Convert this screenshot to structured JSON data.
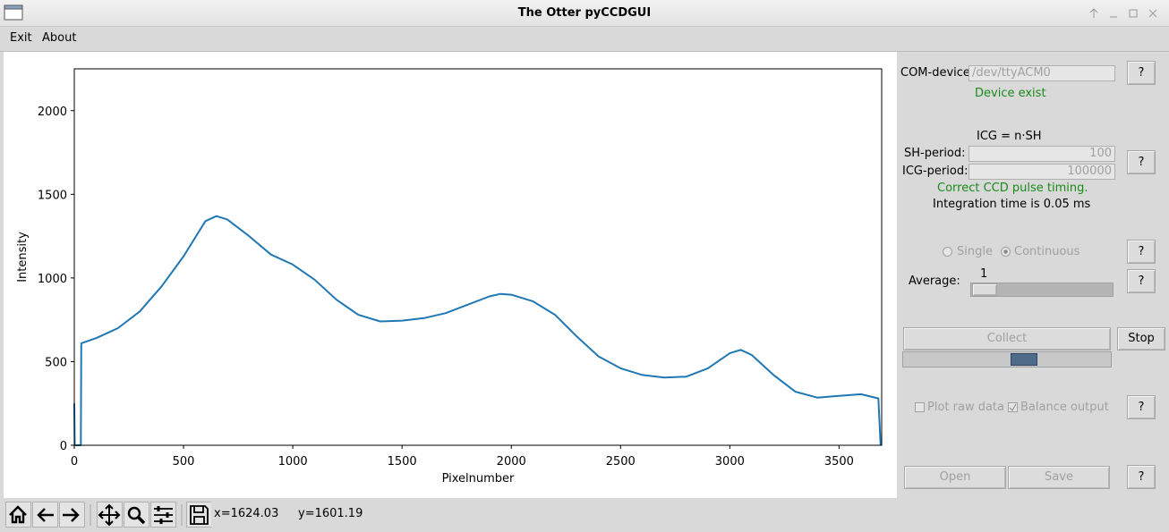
{
  "window": {
    "title": "The Otter pyCCDGUI"
  },
  "menu": [
    "Exit",
    "About"
  ],
  "chart_data": {
    "type": "line",
    "xlabel": "Pixelnumber",
    "ylabel": "Intensity",
    "x": [
      0,
      2,
      30,
      32,
      100,
      200,
      300,
      400,
      500,
      600,
      650,
      700,
      800,
      900,
      1000,
      1100,
      1200,
      1300,
      1400,
      1500,
      1600,
      1700,
      1800,
      1900,
      1950,
      2000,
      2100,
      2200,
      2300,
      2400,
      2500,
      2600,
      2700,
      2800,
      2900,
      3000,
      3050,
      3100,
      3200,
      3300,
      3400,
      3500,
      3600,
      3680,
      3690
    ],
    "series": [
      {
        "color": "#1f77b4",
        "values": [
          250,
          0,
          0,
          610,
          640,
          700,
          800,
          950,
          1130,
          1340,
          1370,
          1350,
          1250,
          1140,
          1080,
          990,
          870,
          780,
          740,
          745,
          760,
          790,
          840,
          890,
          905,
          900,
          860,
          780,
          650,
          530,
          460,
          420,
          405,
          410,
          460,
          550,
          570,
          540,
          420,
          320,
          285,
          295,
          305,
          280,
          0
        ]
      }
    ],
    "xlim": [
      0,
      3695
    ],
    "ylim": [
      0,
      2250
    ],
    "xticks": [
      0,
      500,
      1000,
      1500,
      2000,
      2500,
      3000,
      3500
    ],
    "yticks": [
      0,
      500,
      1000,
      1500,
      2000
    ]
  },
  "panel": {
    "com_label": "COM-device:",
    "com_value": "/dev/ttyACM0",
    "com_status": "Device exist",
    "icg_formula": "ICG = n·SH",
    "sh_label": "SH-period:",
    "sh_value": 100,
    "icg_label": "ICG-period:",
    "icg_value": 100000,
    "timing_status": "Correct CCD pulse timing.",
    "integration": "Integration time is 0.05 ms",
    "single": "Single",
    "continuous": "Continuous",
    "average_label": "Average:",
    "average_value": 1,
    "collect": "Collect",
    "stop": "Stop",
    "plot_raw": "Plot raw data",
    "balance": "Balance output",
    "open": "Open",
    "save": "Save",
    "help": [
      "?",
      "?",
      "?",
      "?",
      "?",
      "?"
    ]
  },
  "toolbar": {
    "x_coord": "x=1624.03",
    "y_coord": "y=1601.19"
  }
}
